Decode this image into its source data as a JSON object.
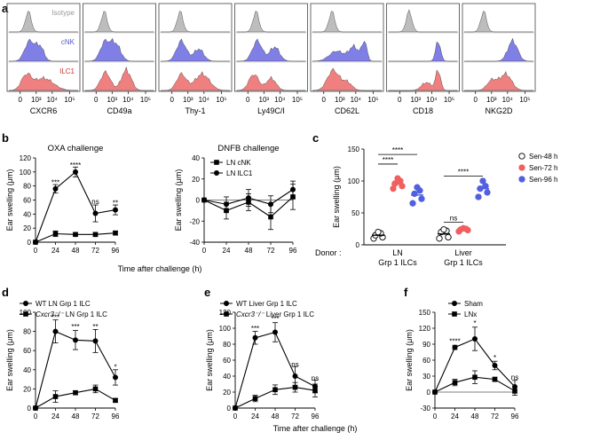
{
  "panels": {
    "a": {
      "letter": "a",
      "row_labels": [
        "Isotype",
        "cNK",
        "ILC1"
      ],
      "markers": [
        "CXCR6",
        "CD49a",
        "Thy-1",
        "Ly49C/I",
        "CD62L",
        "CD18",
        "NKG2D"
      ],
      "ticks": [
        "0",
        "10³",
        "10⁴",
        "10⁵"
      ],
      "colors": {
        "isotype": "#bdbdbd",
        "cnk": "#7f7fe6",
        "ilc1": "#f08080"
      }
    },
    "b": {
      "letter": "b"
    },
    "c": {
      "letter": "c"
    },
    "d": {
      "letter": "d"
    },
    "e": {
      "letter": "e"
    },
    "f": {
      "letter": "f"
    }
  },
  "common": {
    "ylabel": "Ear swelling (μm)",
    "xlabel": "Time after challenge (h)"
  },
  "chart_data": [
    {
      "id": "b1",
      "type": "line",
      "title": "OXA challenge",
      "x": [
        0,
        24,
        48,
        72,
        96
      ],
      "ylim": [
        0,
        120
      ],
      "yticks": [
        0,
        20,
        40,
        60,
        80,
        100,
        120
      ],
      "series": [
        {
          "name": "LN ILC1",
          "marker": "circle",
          "values": [
            0,
            76,
            100,
            41,
            46
          ],
          "err": [
            0,
            6,
            7,
            12,
            7
          ]
        },
        {
          "name": "LN cNK",
          "marker": "square",
          "values": [
            0,
            12,
            11,
            11,
            13
          ],
          "err": [
            0,
            4,
            2,
            3,
            3
          ]
        }
      ],
      "annotations": [
        {
          "x": 24,
          "text": "***",
          "y": 85
        },
        {
          "x": 48,
          "text": "****",
          "y": 110
        },
        {
          "x": 72,
          "text": "ns",
          "y": 58
        },
        {
          "x": 96,
          "text": "**",
          "y": 56
        }
      ]
    },
    {
      "id": "b2",
      "type": "line",
      "title": "DNFB challenge",
      "x": [
        0,
        24,
        48,
        72,
        96
      ],
      "ylim": [
        -40,
        40
      ],
      "yticks": [
        -40,
        -20,
        0,
        20,
        40
      ],
      "series": [
        {
          "name": "LN cNK",
          "marker": "square",
          "values": [
            0,
            -10,
            -2,
            -16,
            3
          ],
          "err": [
            0,
            8,
            8,
            12,
            12
          ]
        },
        {
          "name": "LN ILC1",
          "marker": "circle",
          "values": [
            0,
            -4,
            2,
            -4,
            10
          ],
          "err": [
            0,
            7,
            8,
            8,
            8
          ]
        }
      ],
      "annotations": []
    },
    {
      "id": "c",
      "type": "scatter",
      "ylim": [
        0,
        150
      ],
      "yticks": [
        0,
        50,
        100,
        150
      ],
      "donor_label": "Donor :",
      "groups": [
        {
          "label": "LN",
          "sublabel": "Grp 1 ILCs",
          "points": {
            "Sen-48 h": [
              10,
              12,
              15,
              18,
              20
            ],
            "Sen-72 h": [
              88,
              92,
              96,
              100,
              104
            ],
            "Sen-96 h": [
              65,
              72,
              80,
              85,
              90
            ]
          },
          "means": {
            "Sen-48 h": 15,
            "Sen-72 h": 95,
            "Sen-96 h": 78
          }
        },
        {
          "label": "Liver",
          "sublabel": "Grp 1 ILCs",
          "points": {
            "Sen-48 h": [
              10,
              12,
              20,
              22,
              24
            ],
            "Sen-72 h": [
              21,
              23,
              24,
              25,
              26
            ],
            "Sen-96 h": [
              75,
              82,
              88,
              92,
              100
            ]
          },
          "means": {
            "Sen-48 h": 17,
            "Sen-72 h": 23,
            "Sen-96 h": 88
          }
        }
      ],
      "legend": [
        {
          "name": "Sen-48 h",
          "fill": "#ffffff"
        },
        {
          "name": "Sen-72 h",
          "fill": "#f06060"
        },
        {
          "name": "Sen-96 h",
          "fill": "#5060e0"
        }
      ],
      "brackets": [
        {
          "text": "****",
          "y": 147
        },
        {
          "text": "****",
          "y": 132
        },
        {
          "text": "ns",
          "y": 41
        },
        {
          "text": "****",
          "y": 113
        }
      ]
    },
    {
      "id": "d",
      "type": "line",
      "x": [
        0,
        24,
        48,
        72,
        96
      ],
      "ylim": [
        0,
        100
      ],
      "yticks": [
        0,
        20,
        40,
        60,
        80,
        100
      ],
      "series": [
        {
          "name": "WT LN Grp 1 ILC",
          "marker": "circle",
          "values": [
            0,
            80,
            71,
            70,
            32
          ],
          "err": [
            0,
            12,
            10,
            12,
            8
          ]
        },
        {
          "name": "LN Grp 1 ILC",
          "marker": "square",
          "values": [
            0,
            12,
            16,
            20,
            8
          ],
          "err": [
            0,
            6,
            2,
            4,
            2
          ]
        }
      ],
      "legend_prefix": [
        "",
        "Cxcr3⁻/⁻ "
      ],
      "annotations": [
        {
          "x": 24,
          "text": "***",
          "y": 95
        },
        {
          "x": 48,
          "text": "***",
          "y": 85
        },
        {
          "x": 72,
          "text": "**",
          "y": 85
        },
        {
          "x": 96,
          "text": "*",
          "y": 43
        }
      ]
    },
    {
      "id": "e",
      "type": "line",
      "x": [
        0,
        24,
        48,
        72,
        96
      ],
      "ylim": [
        0,
        120
      ],
      "yticks": [
        0,
        20,
        40,
        60,
        80,
        100,
        120
      ],
      "series": [
        {
          "name": "WT Liver Grp 1 ILC",
          "marker": "circle",
          "values": [
            0,
            88,
            95,
            40,
            27
          ],
          "err": [
            0,
            8,
            12,
            12,
            8
          ]
        },
        {
          "name": "Liver Grp 1 ILC",
          "marker": "square",
          "values": [
            0,
            12,
            23,
            26,
            22
          ],
          "err": [
            0,
            4,
            6,
            6,
            8
          ]
        }
      ],
      "legend_prefix": [
        "",
        "Cxcr3⁻/⁻ "
      ],
      "annotations": [
        {
          "x": 24,
          "text": "***",
          "y": 100
        },
        {
          "x": 48,
          "text": "***",
          "y": 112
        },
        {
          "x": 72,
          "text": "ns",
          "y": 55
        },
        {
          "x": 96,
          "text": "ns",
          "y": 38
        }
      ]
    },
    {
      "id": "f",
      "type": "line",
      "x": [
        0,
        24,
        48,
        72,
        96
      ],
      "ylim": [
        -30,
        150
      ],
      "yticks": [
        -30,
        0,
        30,
        60,
        90,
        120,
        150
      ],
      "series": [
        {
          "name": "Sham",
          "marker": "circle",
          "values": [
            0,
            84,
            100,
            50,
            10
          ],
          "err": [
            0,
            4,
            22,
            8,
            12
          ]
        },
        {
          "name": "LNx",
          "marker": "square",
          "values": [
            0,
            18,
            28,
            24,
            2
          ],
          "err": [
            0,
            6,
            12,
            4,
            8
          ]
        }
      ],
      "annotations": [
        {
          "x": 24,
          "text": "****",
          "y": 96
        },
        {
          "x": 48,
          "text": "*",
          "y": 130
        },
        {
          "x": 72,
          "text": "*",
          "y": 65
        },
        {
          "x": 96,
          "text": "ns",
          "y": 28
        }
      ]
    }
  ]
}
